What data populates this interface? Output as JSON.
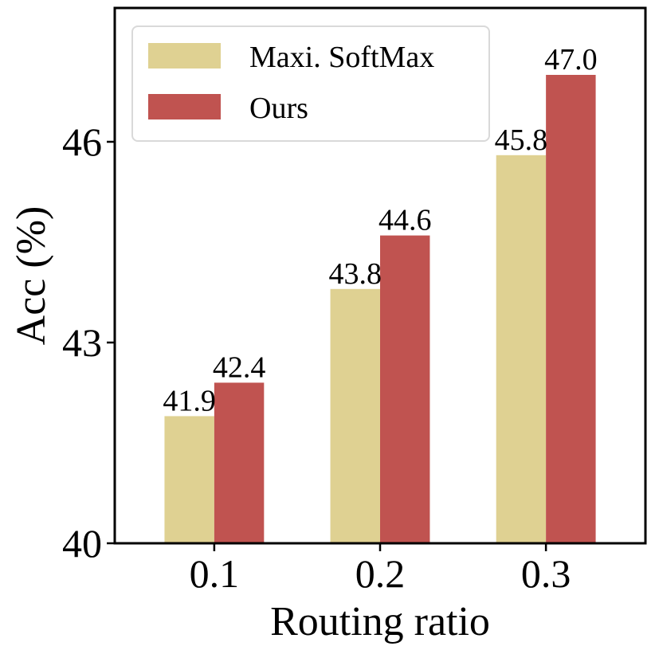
{
  "chart_data": {
    "type": "bar",
    "categories": [
      "0.1",
      "0.2",
      "0.3"
    ],
    "series": [
      {
        "name": "Maxi. SoftMax",
        "values": [
          41.9,
          43.8,
          45.8
        ],
        "color": "#dfd192",
        "labels": [
          "41.9",
          "43.8",
          "45.8"
        ]
      },
      {
        "name": "Ours",
        "values": [
          42.4,
          44.6,
          47.0
        ],
        "color": "#c05350",
        "labels": [
          "42.4",
          "44.6",
          "47.0"
        ]
      }
    ],
    "xlabel": "Routing ratio",
    "ylabel": "Acc (%)",
    "ylim": [
      40,
      48
    ],
    "yticks": [
      40,
      43,
      46
    ],
    "ytick_labels": [
      "40",
      "43",
      "46"
    ],
    "legend": "top-left",
    "grid": false
  }
}
